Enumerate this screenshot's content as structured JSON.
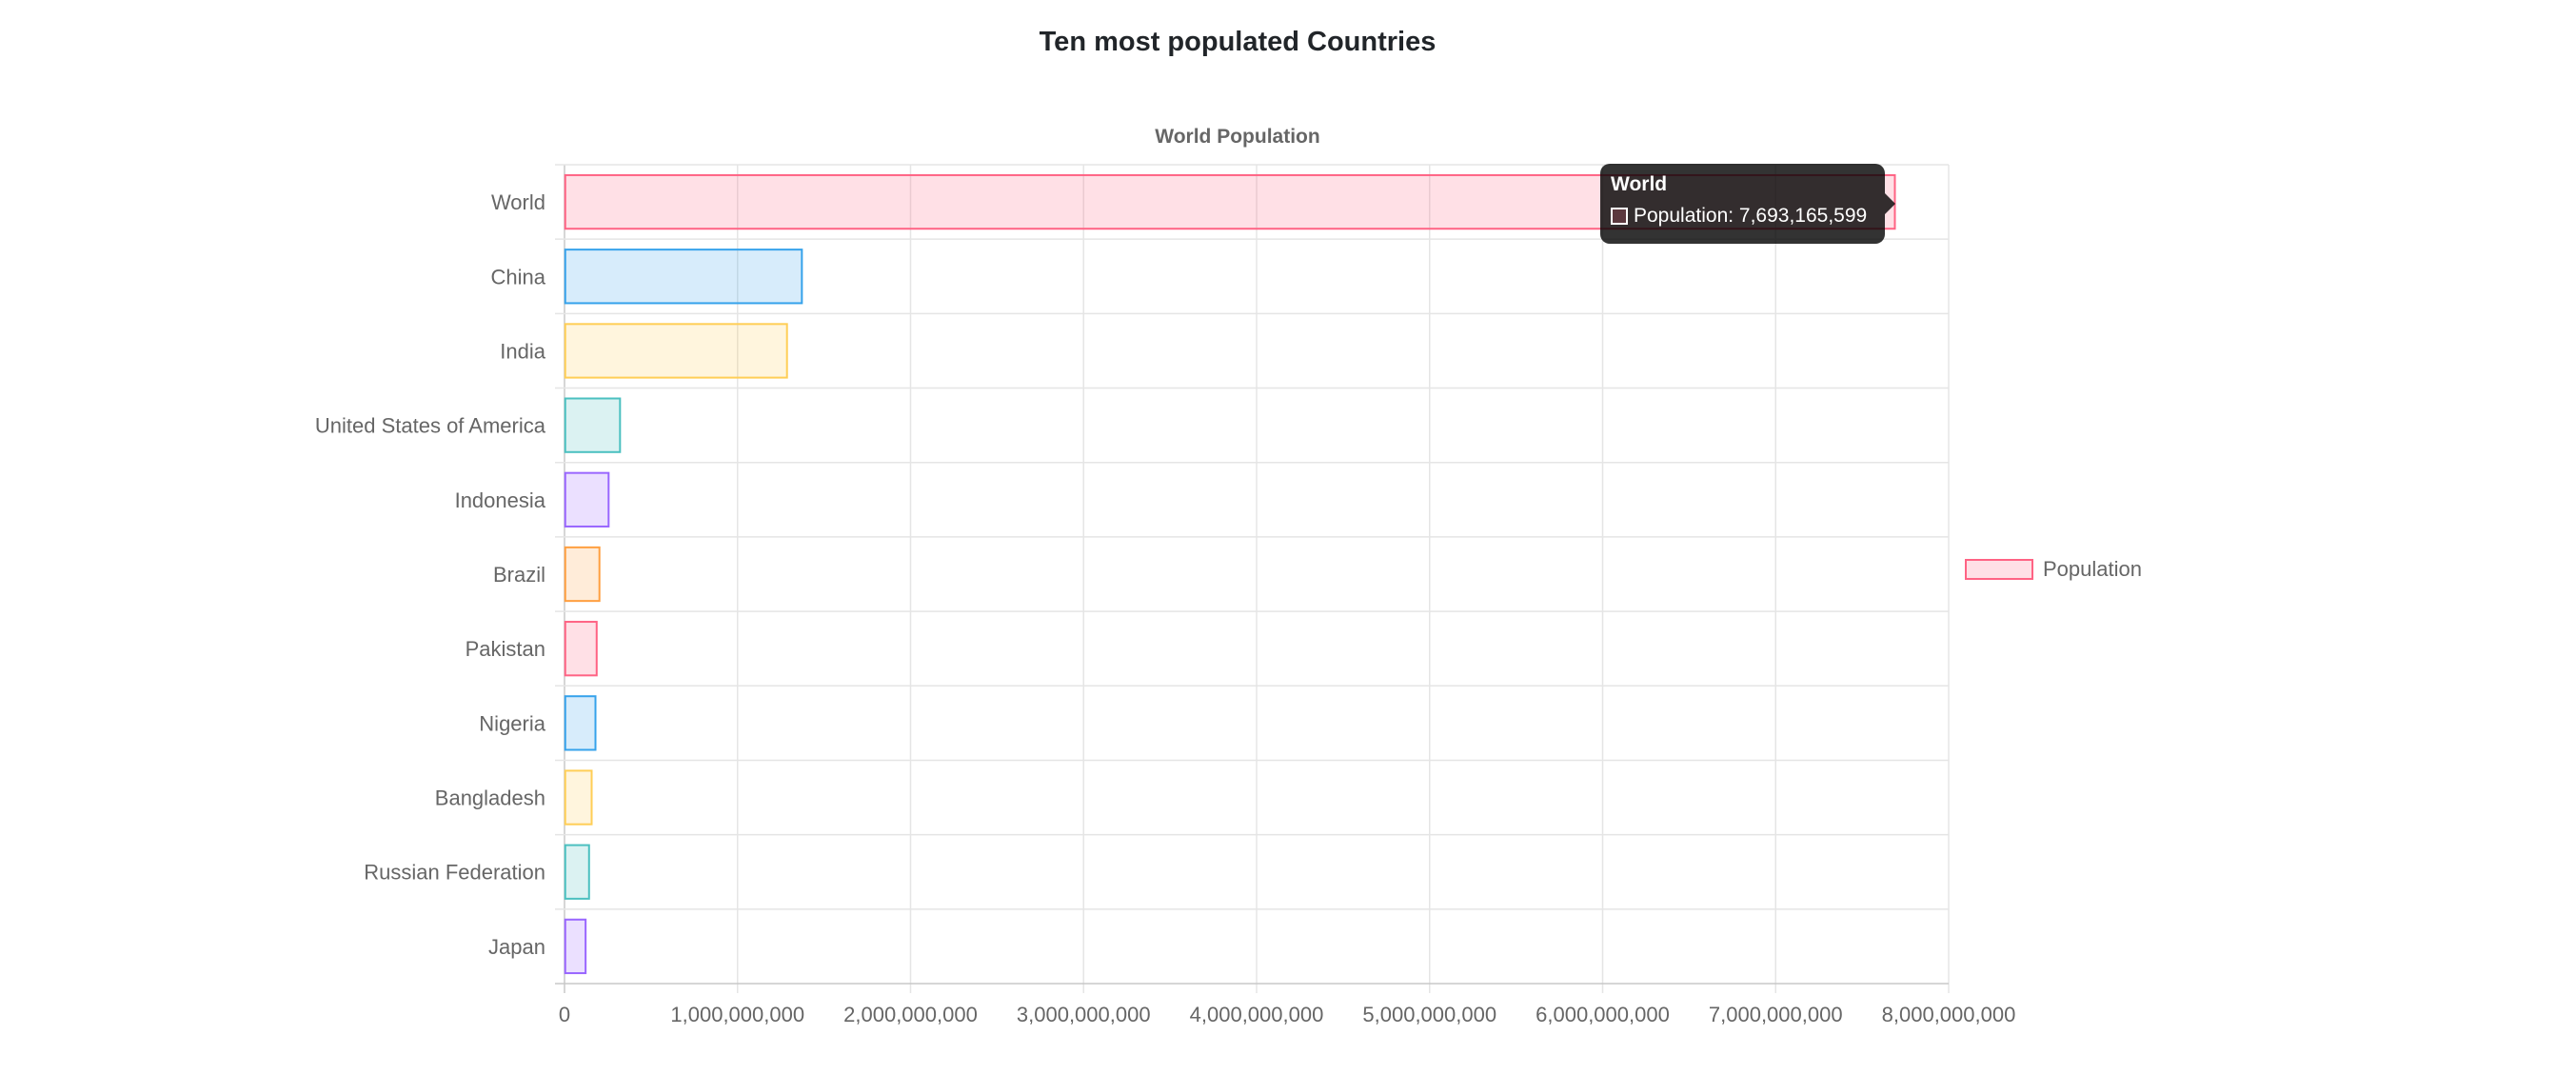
{
  "page_title": "Ten most populated Countries",
  "chart_data": {
    "type": "bar",
    "orientation": "horizontal",
    "title": "World Population",
    "categories": [
      "World",
      "China",
      "India",
      "United States of America",
      "Indonesia",
      "Brazil",
      "Pakistan",
      "Nigeria",
      "Bangladesh",
      "Russian Federation",
      "Japan"
    ],
    "series": [
      {
        "name": "Population",
        "values": [
          7693165599,
          1376000000,
          1290000000,
          325000000,
          259000000,
          206000000,
          190000000,
          183000000,
          161000000,
          146000000,
          126000000
        ]
      }
    ],
    "colors": [
      "#ff6384",
      "#36a2eb",
      "#ffce56",
      "#4bc0c0",
      "#9966ff",
      "#ff9f40"
    ],
    "xlim": [
      0,
      8000000000
    ],
    "x_ticks": [
      "0",
      "1,000,000,000",
      "2,000,000,000",
      "3,000,000,000",
      "4,000,000,000",
      "5,000,000,000",
      "6,000,000,000",
      "7,000,000,000",
      "8,000,000,000"
    ],
    "grid": true,
    "legend_position": "right",
    "legend": [
      {
        "label": "Population",
        "color": "#ff6384"
      }
    ]
  },
  "tooltip": {
    "title": "World",
    "label": "Population: 7,693,165,599",
    "color": "#ff6384"
  }
}
